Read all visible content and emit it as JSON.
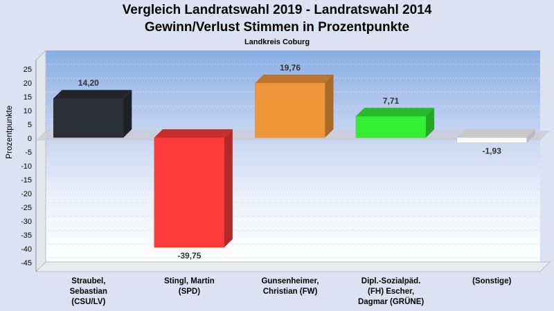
{
  "title": "Vergleich Landratswahl 2019 - Landratswahl 2014",
  "subtitle": "Gewinn/Verlust Stimmen in Prozentpunkte",
  "region": "Landkreis Coburg",
  "chart_data": {
    "type": "bar",
    "title": "Vergleich Landratswahl 2019 - Landratswahl 2014",
    "subtitle": "Gewinn/Verlust Stimmen in Prozentpunkte",
    "xlabel": "",
    "ylabel": "Prozentpunkte",
    "ylim": [
      -48,
      30
    ],
    "yticks": [
      25,
      20,
      15,
      10,
      5,
      0,
      -5,
      -10,
      -15,
      -20,
      -25,
      -30,
      -35,
      -40,
      -45
    ],
    "grid": true,
    "legend": "none",
    "categories": [
      [
        "Straubel,",
        "Sebastian",
        "(CSU/LV)"
      ],
      [
        "Stingl, Martin",
        "(SPD)"
      ],
      [
        "Gunsenheimer,",
        "Christian (FW)"
      ],
      [
        "Dipl.-Sozialpäd.",
        "(FH) Escher,",
        "Dagmar (GRÜNE)"
      ],
      [
        "(Sonstige)"
      ]
    ],
    "values": [
      14.2,
      -39.75,
      19.76,
      7.71,
      -1.93
    ],
    "labels": [
      "14,20",
      "-39,75",
      "19,76",
      "7,71",
      "-1,93"
    ],
    "colors": [
      "#2b2f38",
      "#ff3b3b",
      "#f0963a",
      "#33ee33",
      "#ffffff"
    ]
  }
}
